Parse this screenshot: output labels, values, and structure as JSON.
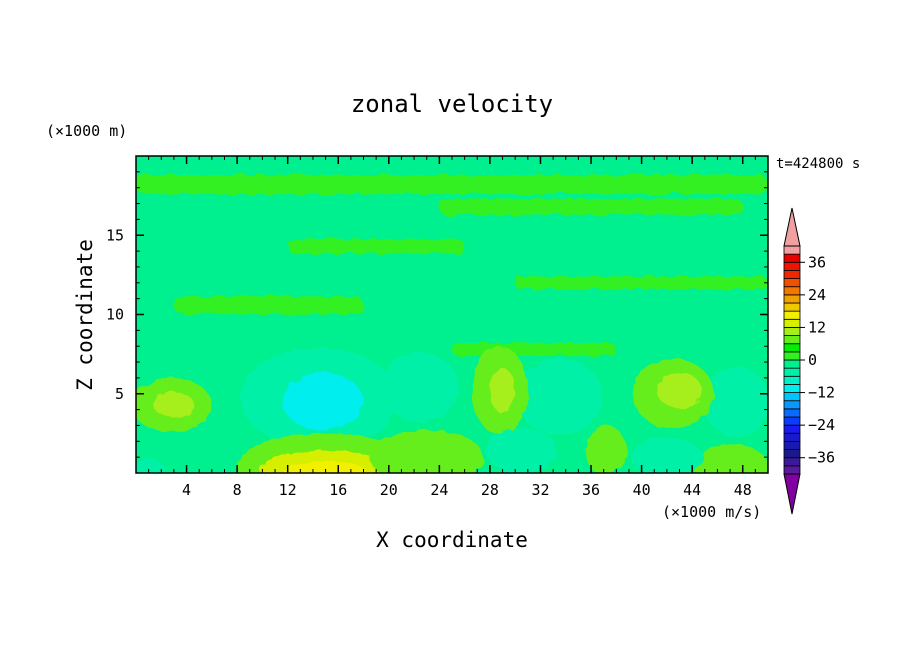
{
  "chart_data": {
    "type": "heatmap",
    "title": "zonal velocity",
    "xlabel": "X coordinate",
    "ylabel": "Z coordinate",
    "y_unit": "(×1000 m)",
    "colorbar_unit": "(×1000 m/s)",
    "time_label": "t=424800 s",
    "xlim": [
      0,
      50
    ],
    "ylim": [
      0,
      20
    ],
    "x_ticks": [
      4,
      8,
      12,
      16,
      20,
      24,
      28,
      32,
      36,
      40,
      44,
      48
    ],
    "y_ticks": [
      5,
      10,
      15
    ],
    "colorbar": {
      "range": [
        -42,
        42
      ],
      "ticks": [
        36,
        24,
        12,
        0,
        -12,
        -24,
        -36
      ],
      "levels": [
        {
          "from": -42,
          "to": -39,
          "color": "#5a1aa0"
        },
        {
          "from": -39,
          "to": -36,
          "color": "#3a1a9a"
        },
        {
          "from": -36,
          "to": -33,
          "color": "#1a1a8a"
        },
        {
          "from": -33,
          "to": -30,
          "color": "#1a1ab0"
        },
        {
          "from": -30,
          "to": -27,
          "color": "#1a1acc"
        },
        {
          "from": -27,
          "to": -24,
          "color": "#1a1aee"
        },
        {
          "from": -24,
          "to": -21,
          "color": "#0a3cff"
        },
        {
          "from": -21,
          "to": -18,
          "color": "#0a6aff"
        },
        {
          "from": -18,
          "to": -15,
          "color": "#0a96ff"
        },
        {
          "from": -15,
          "to": -12,
          "color": "#00c4ff"
        },
        {
          "from": -12,
          "to": -9,
          "color": "#00eeee"
        },
        {
          "from": -9,
          "to": -6,
          "color": "#00f0cc"
        },
        {
          "from": -6,
          "to": -3,
          "color": "#00f0a8"
        },
        {
          "from": -3,
          "to": 0,
          "color": "#00f090"
        },
        {
          "from": 0,
          "to": 3,
          "color": "#32f020"
        },
        {
          "from": 3,
          "to": 6,
          "color": "#00ee00"
        },
        {
          "from": 6,
          "to": 9,
          "color": "#66ee1a"
        },
        {
          "from": 9,
          "to": 12,
          "color": "#a6ee1a"
        },
        {
          "from": 12,
          "to": 15,
          "color": "#d6ee00"
        },
        {
          "from": 15,
          "to": 18,
          "color": "#f0f000"
        },
        {
          "from": 18,
          "to": 21,
          "color": "#f0c800"
        },
        {
          "from": 21,
          "to": 24,
          "color": "#f0a000"
        },
        {
          "from": 24,
          "to": 27,
          "color": "#f07800"
        },
        {
          "from": 27,
          "to": 30,
          "color": "#f05000"
        },
        {
          "from": 30,
          "to": 33,
          "color": "#f02800"
        },
        {
          "from": 33,
          "to": 36,
          "color": "#f01400"
        },
        {
          "from": 36,
          "to": 39,
          "color": "#e80000"
        },
        {
          "from": 39,
          "to": 42,
          "color": "#f0a0a0"
        }
      ],
      "under_color": "#8000a0",
      "over_color": "#f0a0a0"
    },
    "background_value": -2,
    "regions": [
      {
        "kind": "band",
        "y": 18.2,
        "x0": 0,
        "x1": 50,
        "h": 1.2,
        "v": 2
      },
      {
        "kind": "band",
        "y": 16.8,
        "x0": 24,
        "x1": 48,
        "h": 1.0,
        "v": 2
      },
      {
        "kind": "band",
        "y": 14.3,
        "x0": 12,
        "x1": 26,
        "h": 0.9,
        "v": 2
      },
      {
        "kind": "band",
        "y": 12.0,
        "x0": 30,
        "x1": 50,
        "h": 0.8,
        "v": 2
      },
      {
        "kind": "band",
        "y": 10.6,
        "x0": 3,
        "x1": 18,
        "h": 1.1,
        "v": 2
      },
      {
        "kind": "band",
        "y": 7.8,
        "x0": 25,
        "x1": 38,
        "h": 0.8,
        "v": 2
      },
      {
        "kind": "blob",
        "x": 14.5,
        "y": 4.7,
        "rx": 6.2,
        "ry": 3.2,
        "v": -6
      },
      {
        "kind": "blob",
        "x": 14.8,
        "y": 4.5,
        "rx": 3.2,
        "ry": 1.8,
        "v": -11
      },
      {
        "kind": "blob",
        "x": 22.5,
        "y": 5.4,
        "rx": 3.0,
        "ry": 2.2,
        "v": -6
      },
      {
        "kind": "blob",
        "x": 33.5,
        "y": 4.8,
        "rx": 3.4,
        "ry": 2.4,
        "v": -5
      },
      {
        "kind": "blob",
        "x": 47.5,
        "y": 4.5,
        "rx": 2.6,
        "ry": 2.2,
        "v": -5
      },
      {
        "kind": "blob",
        "x": 2.8,
        "y": 4.3,
        "rx": 3.2,
        "ry": 1.7,
        "v": 6
      },
      {
        "kind": "blob",
        "x": 3.0,
        "y": 4.3,
        "rx": 1.6,
        "ry": 0.8,
        "v": 10
      },
      {
        "kind": "blob",
        "x": 28.8,
        "y": 5.2,
        "rx": 2.2,
        "ry": 2.8,
        "v": 6
      },
      {
        "kind": "blob",
        "x": 29.0,
        "y": 5.2,
        "rx": 1.0,
        "ry": 1.4,
        "v": 9
      },
      {
        "kind": "blob",
        "x": 42.5,
        "y": 5.0,
        "rx": 3.2,
        "ry": 2.2,
        "v": 6
      },
      {
        "kind": "blob",
        "x": 43.0,
        "y": 5.2,
        "rx": 1.8,
        "ry": 1.1,
        "v": 10
      },
      {
        "kind": "blob",
        "x": 15.0,
        "y": 0.4,
        "rx": 7.0,
        "ry": 2.1,
        "v": 7
      },
      {
        "kind": "blob",
        "x": 15.0,
        "y": 0.2,
        "rx": 5.2,
        "ry": 1.2,
        "v": 12
      },
      {
        "kind": "blob",
        "x": 15.0,
        "y": 0.0,
        "rx": 3.2,
        "ry": 0.8,
        "v": 16
      },
      {
        "kind": "blob",
        "x": 23.0,
        "y": 1.0,
        "rx": 4.5,
        "ry": 1.7,
        "v": 7
      },
      {
        "kind": "blob",
        "x": 37.2,
        "y": 1.4,
        "rx": 1.6,
        "ry": 1.6,
        "v": 6
      },
      {
        "kind": "blob",
        "x": 47.0,
        "y": 0.5,
        "rx": 3.0,
        "ry": 1.3,
        "v": 8
      },
      {
        "kind": "blob",
        "x": 1.0,
        "y": 0.2,
        "rx": 1.2,
        "ry": 0.8,
        "v": -6
      },
      {
        "kind": "blob",
        "x": 30.5,
        "y": 1.4,
        "rx": 2.8,
        "ry": 1.4,
        "v": -5
      },
      {
        "kind": "blob",
        "x": 42.0,
        "y": 1.0,
        "rx": 2.8,
        "ry": 1.2,
        "v": -5
      }
    ]
  }
}
